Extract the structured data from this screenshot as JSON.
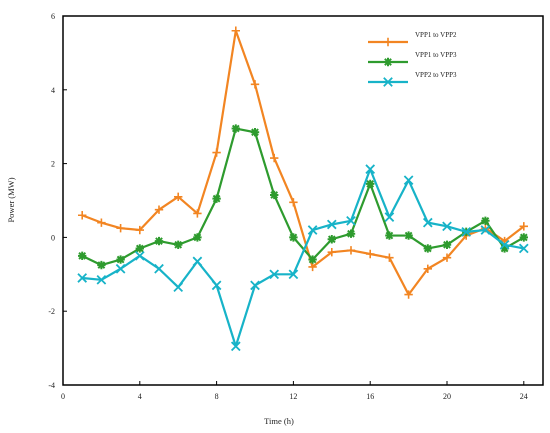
{
  "chart_data": {
    "type": "line",
    "title": "",
    "xlabel": "Time (h)",
    "ylabel": "Power (MW)",
    "xlim": [
      0,
      25
    ],
    "ylim": [
      -4,
      6
    ],
    "xticks": [
      0,
      4,
      8,
      12,
      16,
      20,
      24
    ],
    "yticks": [
      -4,
      -2,
      0,
      2,
      4,
      6
    ],
    "grid": false,
    "legend_position": "top-right",
    "x": [
      1,
      2,
      3,
      4,
      5,
      6,
      7,
      8,
      9,
      10,
      11,
      12,
      13,
      14,
      15,
      16,
      17,
      18,
      19,
      20,
      21,
      22,
      23,
      24
    ],
    "series": [
      {
        "name": "VPP1 to VPP2",
        "color": "#f28522",
        "marker": "plus",
        "values": [
          0.6,
          0.4,
          0.25,
          0.2,
          0.75,
          1.1,
          0.65,
          2.3,
          5.6,
          4.15,
          2.15,
          0.95,
          -0.8,
          -0.4,
          -0.35,
          -0.45,
          -0.55,
          -1.55,
          -0.85,
          -0.55,
          0.05,
          0.25,
          -0.1,
          0.3
        ]
      },
      {
        "name": "VPP1 to VPP3",
        "color": "#2e9b2e",
        "marker": "asterisk",
        "values": [
          -0.5,
          -0.75,
          -0.6,
          -0.3,
          -0.1,
          -0.2,
          0.0,
          1.05,
          2.95,
          2.85,
          1.15,
          0.0,
          -0.6,
          -0.05,
          0.1,
          1.45,
          0.05,
          0.05,
          -0.3,
          -0.2,
          0.15,
          0.45,
          -0.3,
          0.0
        ]
      },
      {
        "name": "VPP2 to VPP3",
        "color": "#17b3c8",
        "marker": "x",
        "values": [
          -1.1,
          -1.15,
          -0.85,
          -0.5,
          -0.85,
          -1.35,
          -0.65,
          -1.3,
          -2.95,
          -1.3,
          -1.0,
          -1.0,
          0.2,
          0.35,
          0.45,
          1.85,
          0.55,
          1.55,
          0.4,
          0.3,
          0.15,
          0.2,
          -0.2,
          -0.3
        ]
      }
    ]
  }
}
